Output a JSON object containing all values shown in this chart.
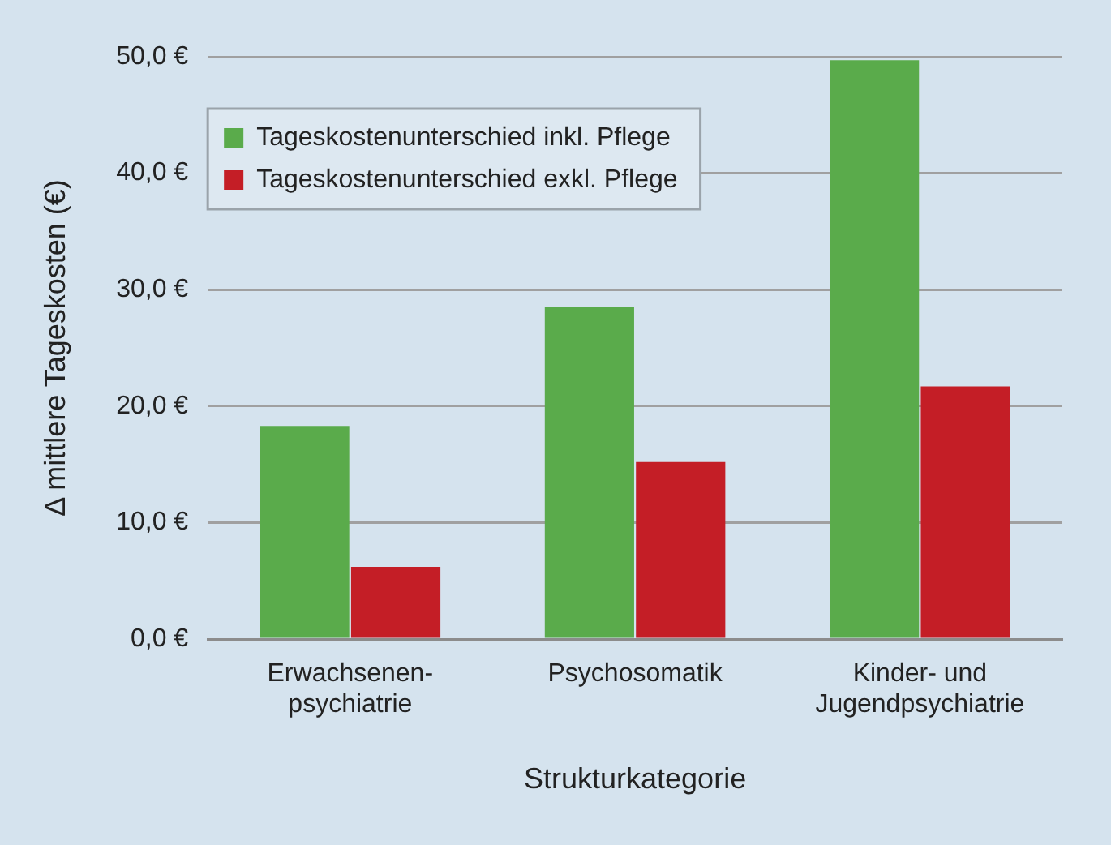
{
  "chart_data": {
    "type": "bar",
    "xlabel": "Strukturkategorie",
    "ylabel": "Δ mittlere Tageskosten (€)",
    "categories": [
      "Erwachsenen-\npsychiatrie",
      "Psychosomatik",
      "Kinder- und\nJugendpsychiatrie"
    ],
    "series": [
      {
        "name": "Tageskostenunterschied inkl. Pflege",
        "color": "#5aab4b",
        "values": [
          18.3,
          28.5,
          49.7
        ]
      },
      {
        "name": "Tageskostenunterschied exkl. Pflege",
        "color": "#c41e26",
        "values": [
          6.2,
          15.2,
          21.7
        ]
      }
    ],
    "ylim": [
      0,
      50
    ],
    "yticks": [
      {
        "value": 0,
        "label": "0,0 €"
      },
      {
        "value": 10,
        "label": "10,0 €"
      },
      {
        "value": 20,
        "label": "20,0 €"
      },
      {
        "value": 30,
        "label": "30,0 €"
      },
      {
        "value": 40,
        "label": "40,0 €"
      },
      {
        "value": 50,
        "label": "50,0 €"
      }
    ],
    "grid": "y",
    "legend": "top left"
  }
}
